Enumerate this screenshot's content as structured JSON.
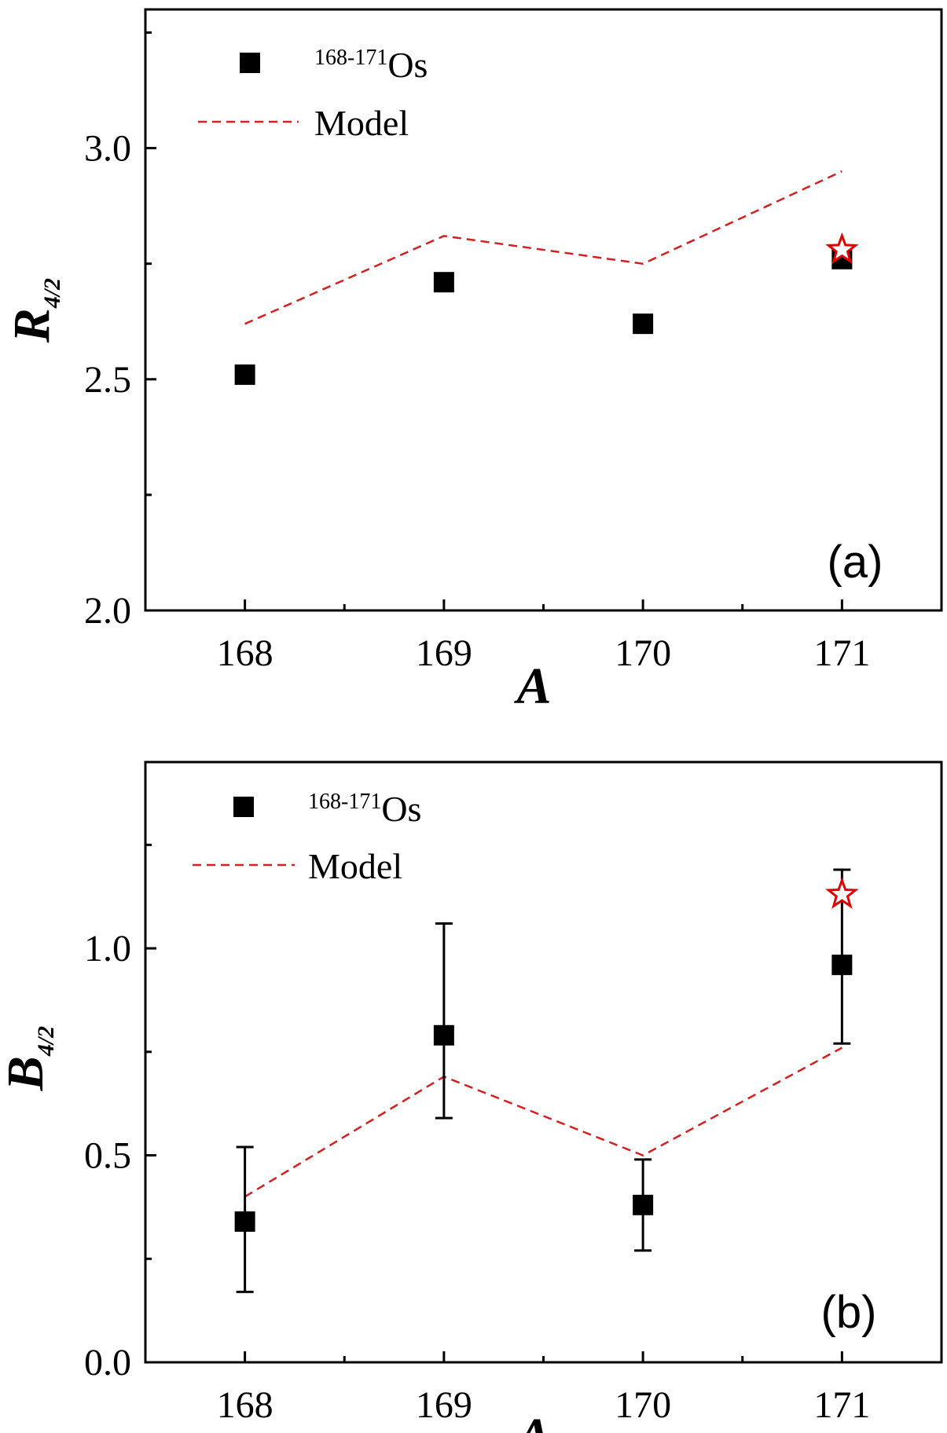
{
  "chart_data": [
    {
      "type": "scatter",
      "panel_label": "(a)",
      "xlabel": "A",
      "ylabel": "R",
      "ylabel_sub": "4/2",
      "xlim": [
        167.5,
        171.5
      ],
      "ylim": [
        2.0,
        3.3
      ],
      "x_ticks": [
        168,
        169,
        170,
        171
      ],
      "y_ticks": [
        2.0,
        2.5,
        3.0
      ],
      "y_tick_labels": [
        "2.0",
        "2.5",
        "3.0"
      ],
      "y_minor_ticks": [
        2.25,
        2.75,
        3.25
      ],
      "legend": {
        "placement": "top-left",
        "data_label_sup": "168-171",
        "data_label_main": "Os",
        "model_label": "Model"
      },
      "series": [
        {
          "name": "168-171Os",
          "style": "square",
          "x": [
            168,
            169,
            170,
            171
          ],
          "y": [
            2.51,
            2.71,
            2.62,
            2.76
          ]
        },
        {
          "name": "Model",
          "style": "dashed-line",
          "x": [
            168,
            169,
            170,
            171
          ],
          "y": [
            2.62,
            2.81,
            2.75,
            2.95
          ]
        },
        {
          "name": "star",
          "style": "star",
          "x": [
            171
          ],
          "y": [
            2.78
          ]
        }
      ]
    },
    {
      "type": "scatter",
      "panel_label": "(b)",
      "xlabel": "A",
      "ylabel": "B",
      "ylabel_sub": "4/2",
      "xlim": [
        167.5,
        171.5
      ],
      "ylim": [
        0.0,
        1.45
      ],
      "x_ticks": [
        168,
        169,
        170,
        171
      ],
      "y_ticks": [
        0.0,
        0.5,
        1.0
      ],
      "y_tick_labels": [
        "0.0",
        "0.5",
        "1.0"
      ],
      "y_minor_ticks": [
        0.25,
        0.75,
        1.25
      ],
      "legend": {
        "placement": "top-left",
        "data_label_sup": "168-171",
        "data_label_main": "Os",
        "model_label": "Model"
      },
      "series": [
        {
          "name": "168-171Os",
          "style": "square",
          "x": [
            168,
            169,
            170,
            171
          ],
          "y": [
            0.34,
            0.79,
            0.38,
            0.96
          ],
          "err_low": [
            0.17,
            0.59,
            0.27,
            0.77
          ],
          "err_high": [
            0.52,
            1.06,
            0.49,
            1.19
          ]
        },
        {
          "name": "Model",
          "style": "dashed-line",
          "x": [
            168,
            169,
            170,
            171
          ],
          "y": [
            0.4,
            0.69,
            0.5,
            0.76
          ]
        },
        {
          "name": "star",
          "style": "star",
          "x": [
            171
          ],
          "y": [
            1.13
          ]
        }
      ]
    }
  ]
}
